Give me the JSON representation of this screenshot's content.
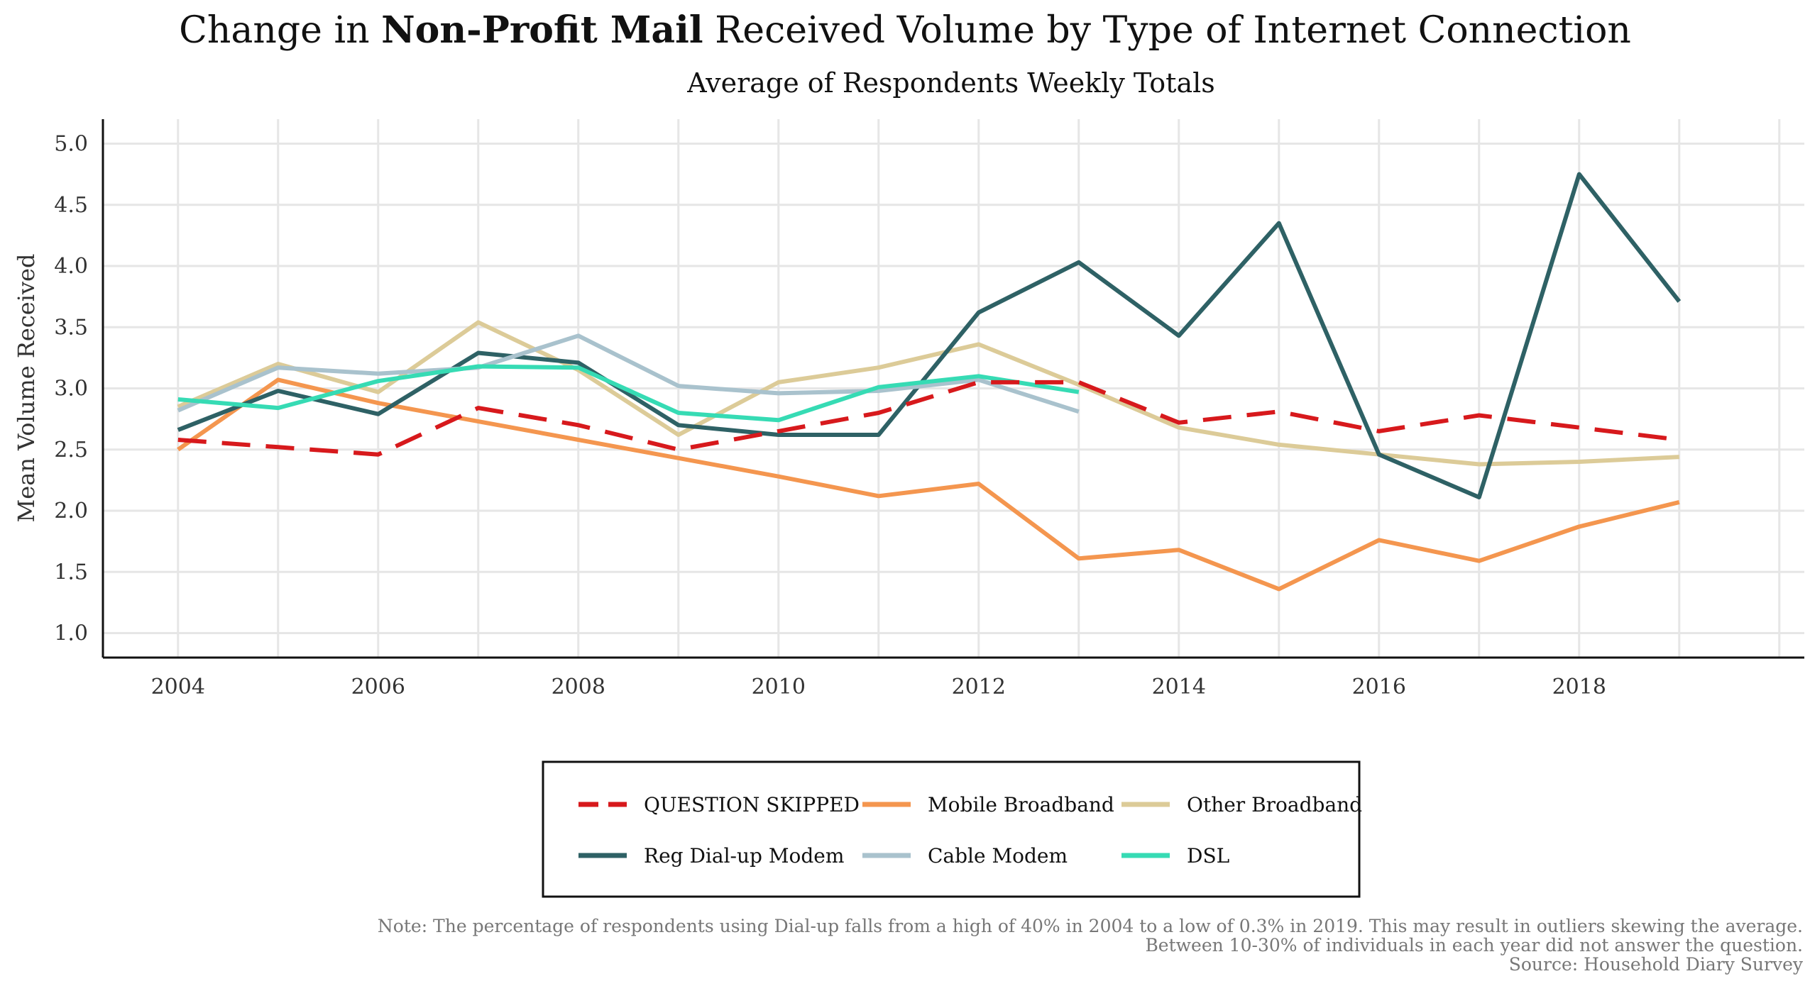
{
  "chart_data": {
    "type": "line",
    "title_prefix": "Change in ",
    "title_bold": "Non-Profit Mail",
    "title_suffix": " Received Volume by Type of Internet Connection",
    "subtitle": "Average of Respondents Weekly Totals",
    "xlabel": "",
    "ylabel": "Mean Volume Received",
    "xlim": [
      2003.25,
      2020.25
    ],
    "ylim": [
      0.8,
      5.2
    ],
    "x_ticks": [
      2004,
      2006,
      2008,
      2010,
      2012,
      2014,
      2016,
      2018
    ],
    "x_tick_labels": [
      "2004",
      "2006",
      "2008",
      "2010",
      "2012",
      "2014",
      "2016",
      "2018"
    ],
    "y_ticks": [
      1.0,
      1.5,
      2.0,
      2.5,
      3.0,
      3.5,
      4.0,
      4.5,
      5.0
    ],
    "y_tick_labels": [
      "1.0",
      "1.5",
      "2.0",
      "2.5",
      "3.0",
      "3.5",
      "4.0",
      "4.5",
      "5.0"
    ],
    "grid": true,
    "legend_position": "bottom",
    "series": [
      {
        "name": "QUESTION SKIPPED",
        "color": "#d7191c",
        "dashed": true,
        "x": [
          2004,
          2005,
          2006,
          2007,
          2008,
          2009,
          2010,
          2011,
          2012,
          2013,
          2014,
          2015,
          2016,
          2017,
          2018,
          2019
        ],
        "y": [
          2.58,
          2.52,
          2.46,
          2.84,
          2.7,
          2.5,
          2.65,
          2.8,
          3.05,
          3.05,
          2.72,
          2.81,
          2.65,
          2.78,
          2.68,
          2.58
        ]
      },
      {
        "name": "Mobile Broadband",
        "color": "#f4964f",
        "dashed": false,
        "x": [
          2004,
          2005,
          2006,
          2007,
          2008,
          2009,
          2010,
          2011,
          2012,
          2013,
          2014,
          2015,
          2016,
          2017,
          2018,
          2019
        ],
        "y": [
          2.5,
          3.07,
          2.88,
          2.73,
          2.58,
          2.43,
          2.28,
          2.12,
          2.22,
          1.61,
          1.68,
          1.36,
          1.76,
          1.59,
          1.87,
          2.07
        ]
      },
      {
        "name": "Other Broadband",
        "color": "#dccb98",
        "dashed": false,
        "x": [
          2004,
          2005,
          2006,
          2007,
          2008,
          2009,
          2010,
          2011,
          2012,
          2013,
          2014,
          2015,
          2016,
          2017,
          2018,
          2019
        ],
        "y": [
          2.85,
          3.2,
          2.97,
          3.54,
          3.15,
          2.62,
          3.05,
          3.17,
          3.36,
          3.03,
          2.68,
          2.54,
          2.46,
          2.38,
          2.4,
          2.44
        ]
      },
      {
        "name": "Reg Dial-up Modem",
        "color": "#2e6165",
        "dashed": false,
        "x": [
          2004,
          2005,
          2006,
          2007,
          2008,
          2009,
          2010,
          2011,
          2012,
          2013,
          2014,
          2015,
          2016,
          2017,
          2018,
          2019
        ],
        "y": [
          2.66,
          2.98,
          2.79,
          3.29,
          3.21,
          2.7,
          2.62,
          2.62,
          3.62,
          4.03,
          3.43,
          4.35,
          2.46,
          2.11,
          4.75,
          3.71
        ]
      },
      {
        "name": "Cable Modem",
        "color": "#a9c2cd",
        "dashed": false,
        "x": [
          2004,
          2005,
          2006,
          2007,
          2008,
          2009,
          2010,
          2011,
          2012,
          2013
        ],
        "y": [
          2.82,
          3.17,
          3.12,
          3.17,
          3.43,
          3.02,
          2.96,
          2.98,
          3.07,
          2.81
        ]
      },
      {
        "name": "DSL",
        "color": "#36dbb4",
        "dashed": false,
        "x": [
          2004,
          2005,
          2006,
          2007,
          2008,
          2009,
          2010,
          2011,
          2012,
          2013
        ],
        "y": [
          2.91,
          2.84,
          3.06,
          3.18,
          3.17,
          2.8,
          2.74,
          3.01,
          3.1,
          2.97
        ]
      }
    ],
    "legend_order": [
      0,
      1,
      2,
      3,
      4,
      5
    ],
    "notes": [
      "Note: The percentage of respondents using Dial-up falls from a high of 40% in 2004 to a low of 0.3% in 2019. This may result in outliers skewing the average.",
      "Between 10-30% of individuals in each year did not answer the question.",
      "Source: Household Diary Survey"
    ]
  }
}
